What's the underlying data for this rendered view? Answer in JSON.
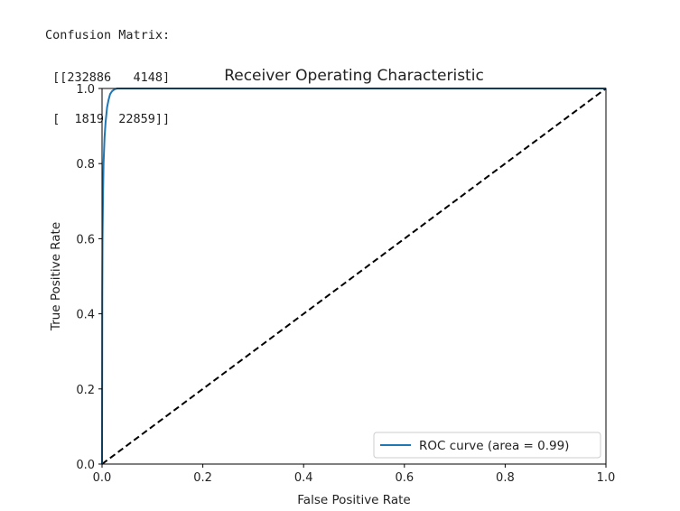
{
  "console": {
    "lines": [
      "Confusion Matrix:",
      " [[232886   4148]",
      " [  1819  22859]]"
    ]
  },
  "chart_data": {
    "type": "line",
    "title": "Receiver Operating Characteristic",
    "xlabel": "False Positive Rate",
    "ylabel": "True Positive Rate",
    "xlim": [
      0.0,
      1.0
    ],
    "ylim": [
      0.0,
      1.0
    ],
    "xticks": [
      "0.0",
      "0.2",
      "0.4",
      "0.6",
      "0.8",
      "1.0"
    ],
    "yticks": [
      "0.0",
      "0.2",
      "0.4",
      "0.6",
      "0.8",
      "1.0"
    ],
    "grid": false,
    "legend_position": "lower-right",
    "series": [
      {
        "name": "ROC curve (area = 0.99)",
        "color": "#1f77b4",
        "style": "solid",
        "x": [
          0.0,
          0.0005,
          0.001,
          0.002,
          0.003,
          0.005,
          0.007,
          0.01,
          0.013,
          0.016,
          0.02,
          0.025,
          0.03,
          0.035,
          1.0
        ],
        "y": [
          0.0,
          0.45,
          0.6,
          0.72,
          0.8,
          0.87,
          0.91,
          0.95,
          0.97,
          0.985,
          0.993,
          0.998,
          1.0,
          1.0,
          1.0
        ]
      },
      {
        "name": "",
        "color": "#000000",
        "style": "dashed",
        "x": [
          0.0,
          1.0
        ],
        "y": [
          0.0,
          1.0
        ]
      }
    ]
  }
}
